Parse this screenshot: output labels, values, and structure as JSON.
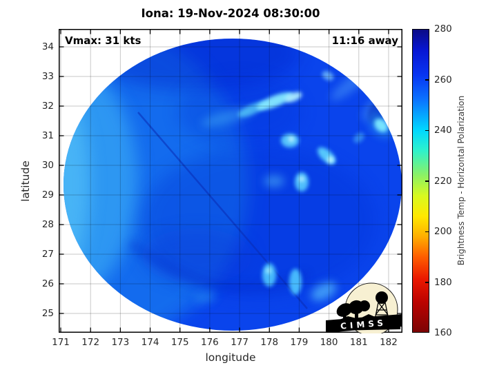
{
  "title": "Iona: 19-Nov-2024 08:30:00",
  "annotations": {
    "vmax": "Vmax: 31 kts",
    "time_to_pass": "11:16 away"
  },
  "axes": {
    "xlabel": "longitude",
    "ylabel": "latitude",
    "x_ticks": [
      "171",
      "172",
      "173",
      "174",
      "175",
      "176",
      "177",
      "178",
      "179",
      "180",
      "181",
      "182"
    ],
    "y_ticks": [
      "34",
      "33",
      "32",
      "31",
      "30",
      "29",
      "28",
      "27",
      "26",
      "25"
    ]
  },
  "colorbar": {
    "label": "Brightness Temp - Horizontal Polarization",
    "ticks": [
      "280",
      "260",
      "240",
      "220",
      "200",
      "180",
      "160"
    ],
    "min": 160,
    "max": 280,
    "stops": [
      {
        "value": 280,
        "color": "#0b0b86"
      },
      {
        "value": 272,
        "color": "#0716d2"
      },
      {
        "value": 262,
        "color": "#0835f2"
      },
      {
        "value": 252,
        "color": "#0b74ff"
      },
      {
        "value": 240,
        "color": "#00d8ff"
      },
      {
        "value": 232,
        "color": "#2ef2cc"
      },
      {
        "value": 222,
        "color": "#8ef163"
      },
      {
        "value": 214,
        "color": "#d8fa20"
      },
      {
        "value": 206,
        "color": "#ffe800"
      },
      {
        "value": 198,
        "color": "#ffb000"
      },
      {
        "value": 190,
        "color": "#ff5f00"
      },
      {
        "value": 181,
        "color": "#ea1800"
      },
      {
        "value": 172,
        "color": "#bc0300"
      },
      {
        "value": 160,
        "color": "#7c0404"
      }
    ]
  },
  "logo": {
    "text": "CIMSS"
  },
  "chart_data": {
    "type": "heatmap",
    "title": "Iona: 19-Nov-2024 08:30:00",
    "xlabel": "longitude",
    "ylabel": "latitude",
    "xlim": [
      170.9,
      182.5
    ],
    "ylim": [
      24.4,
      34.6
    ],
    "grid": true,
    "value_label": "Brightness Temp - Horizontal Polarization",
    "value_units": "K",
    "value_range": [
      160,
      280
    ],
    "annotations": [
      "Vmax: 31 kts",
      "11:16 away"
    ],
    "swath": {
      "shape": "ellipse",
      "center_lon": 176.7,
      "center_lat": 29.4,
      "radius_lon_deg": 5.7,
      "radius_lat_deg": 4.9,
      "background_temp_K_range": [
        248,
        264
      ],
      "description": "Circular microwave scan swath, predominantly blue (warm ~250-262 K), cooler cyan (~244 K) along western side, scattered bright cyan convective cells (~235-242 K) north and south of center, dark blue (~265 K) patches near top and center-right, faint diagonal scan-line artifact from (172.6E, 31.8N) to (178.3E, 25.2N)"
    },
    "features": [
      {
        "name": "cool western sector",
        "lon": 172.4,
        "lat": 29.3,
        "temp_K": 245
      },
      {
        "name": "convective cell band north",
        "lon": 178.2,
        "lat": 32.2,
        "temp_K": 238
      },
      {
        "name": "convective cell",
        "lon": 178.4,
        "lat": 32.3,
        "temp_K": 236
      },
      {
        "name": "convective cell",
        "lon": 178.7,
        "lat": 31.9,
        "temp_K": 240
      },
      {
        "name": "convective cell",
        "lon": 178.8,
        "lat": 30.3,
        "temp_K": 238
      },
      {
        "name": "convective cell",
        "lon": 179.1,
        "lat": 29.4,
        "temp_K": 239
      },
      {
        "name": "bright cell at east edge",
        "lon": 181.8,
        "lat": 31.4,
        "temp_K": 237
      },
      {
        "name": "convective cell south",
        "lon": 178.0,
        "lat": 26.3,
        "temp_K": 240
      },
      {
        "name": "convective cell south",
        "lon": 178.9,
        "lat": 26.1,
        "temp_K": 240
      },
      {
        "name": "dark warm patch top",
        "lon": 175.7,
        "lat": 33.9,
        "temp_K": 266
      },
      {
        "name": "dark warm patch center",
        "lon": 177.8,
        "lat": 28.6,
        "temp_K": 263
      }
    ]
  }
}
